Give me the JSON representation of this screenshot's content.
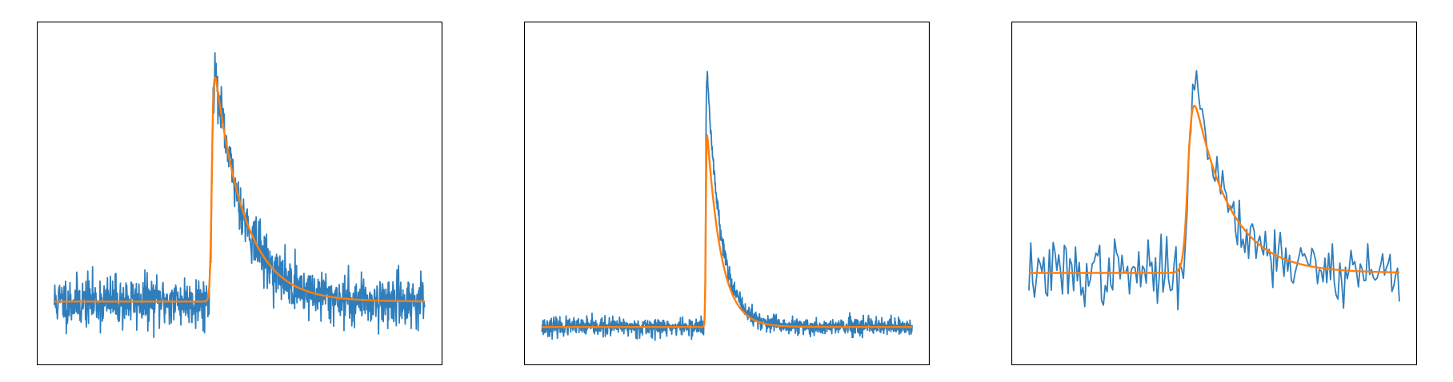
{
  "colors": {
    "signal": "#2f7ebc",
    "fit": "#ff7f0e",
    "frame": "#000000",
    "background": "#ffffff"
  },
  "chart_data": [
    {
      "type": "line",
      "title": "",
      "xlabel": "",
      "ylabel": "",
      "axes_visible": false,
      "grid": false,
      "xlim": [
        0,
        1000
      ],
      "ylim": [
        0,
        100
      ],
      "series": [
        {
          "role": "noisy-signal",
          "color": "#2f7ebc",
          "n_points": 1000,
          "baseline": 16,
          "noise_amplitude": 8,
          "onset": 425,
          "peak": 96,
          "decay_constant": 80,
          "noise_seed": 11
        },
        {
          "role": "fitted-curve",
          "color": "#ff7f0e",
          "baseline": 16,
          "onset": 425,
          "rise_width": 10,
          "peak": 97,
          "decay_constant": 80
        }
      ]
    },
    {
      "type": "line",
      "title": "",
      "xlabel": "",
      "ylabel": "",
      "axes_visible": false,
      "grid": false,
      "xlim": [
        0,
        1000
      ],
      "ylim": [
        0,
        100
      ],
      "series": [
        {
          "role": "noisy-signal",
          "color": "#2f7ebc",
          "n_points": 1200,
          "baseline": 8,
          "noise_amplitude": 2.8,
          "onset": 443,
          "peak": 96,
          "decay_constant": 38,
          "noise_seed": 23
        },
        {
          "role": "fitted-curve",
          "color": "#ff7f0e",
          "baseline": 8,
          "onset": 443,
          "rise_width": 4,
          "peak": 76,
          "decay_constant": 38
        }
      ]
    },
    {
      "type": "line",
      "title": "",
      "xlabel": "",
      "ylabel": "",
      "axes_visible": false,
      "grid": false,
      "xlim": [
        0,
        1000
      ],
      "ylim": [
        0,
        100
      ],
      "series": [
        {
          "role": "noisy-signal",
          "color": "#2f7ebc",
          "n_points": 200,
          "baseline": 25,
          "noise_amplitude": 10,
          "onset": 430,
          "peak": 96,
          "decay_constant": 95,
          "noise_seed": 37
        },
        {
          "role": "fitted-curve",
          "color": "#ff7f0e",
          "baseline": 25,
          "onset": 430,
          "rise_width": 25,
          "peak": 92,
          "decay_constant": 95
        }
      ]
    }
  ]
}
